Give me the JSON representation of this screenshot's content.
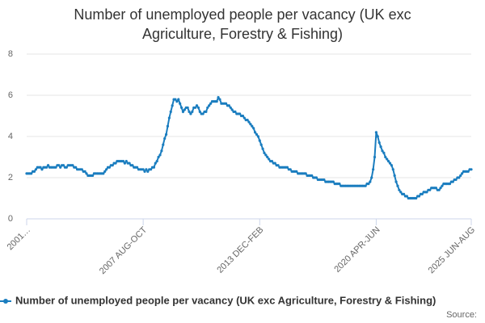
{
  "chart_data": {
    "type": "line",
    "title": "Number of unemployed people per vacancy (UK exc Agriculture, Forestry & Fishing)",
    "source": "Source:",
    "ylim": [
      0,
      8
    ],
    "yticks": [
      0,
      2,
      4,
      6,
      8
    ],
    "grid": true,
    "categories": [
      "2001…",
      null,
      null,
      null,
      null,
      null,
      null,
      null,
      null,
      null,
      null,
      null,
      null,
      null,
      null,
      null,
      null,
      null,
      null,
      null,
      null,
      null,
      null,
      null,
      null,
      null,
      null,
      null,
      null,
      null,
      null,
      null,
      null,
      null,
      null,
      null,
      null,
      null,
      null,
      null,
      null,
      null,
      null,
      null,
      null,
      null,
      null,
      null,
      null,
      null,
      null,
      null,
      null,
      null,
      null,
      null,
      null,
      null,
      null,
      null,
      null,
      null,
      null,
      null,
      null,
      null,
      null,
      null,
      null,
      null,
      null,
      null,
      null,
      null,
      null,
      null,
      "2007 AUG-OCT",
      null,
      null,
      null,
      null,
      null,
      null,
      null,
      null,
      null,
      null,
      null,
      null,
      null,
      null,
      null,
      null,
      null,
      null,
      null,
      null,
      null,
      null,
      null,
      null,
      null,
      null,
      null,
      null,
      null,
      null,
      null,
      null,
      null,
      null,
      null,
      null,
      null,
      null,
      null,
      null,
      null,
      null,
      null,
      null,
      null,
      null,
      null,
      null,
      null,
      null,
      null,
      null,
      null,
      null,
      null,
      null,
      null,
      null,
      null,
      null,
      null,
      null,
      null,
      null,
      null,
      null,
      null,
      null,
      null,
      null,
      null,
      null,
      null,
      null,
      null,
      "2013 DEC-FEB",
      null,
      null,
      null,
      null,
      null,
      null,
      null,
      null,
      null,
      null,
      null,
      null,
      null,
      null,
      null,
      null,
      null,
      null,
      null,
      null,
      null,
      null,
      null,
      null,
      null,
      null,
      null,
      null,
      null,
      null,
      null,
      null,
      null,
      null,
      null,
      null,
      null,
      null,
      null,
      null,
      null,
      null,
      null,
      null,
      null,
      null,
      null,
      null,
      null,
      null,
      null,
      null,
      null,
      null,
      null,
      null,
      null,
      null,
      null,
      null,
      null,
      null,
      null,
      null,
      null,
      null,
      null,
      null,
      null,
      null,
      null,
      null,
      null,
      null,
      null,
      "2020 APR-JUN",
      null,
      null,
      null,
      null,
      null,
      null,
      null,
      null,
      null,
      null,
      null,
      null,
      null,
      null,
      null,
      null,
      null,
      null,
      null,
      null,
      null,
      null,
      null,
      null,
      null,
      null,
      null,
      null,
      null,
      null,
      null,
      null,
      null,
      null,
      null,
      null,
      null,
      null,
      null,
      null,
      null,
      null,
      null,
      null,
      null,
      null,
      null,
      null,
      null,
      null,
      null,
      null,
      null,
      null,
      null,
      null,
      null,
      null,
      null,
      null,
      null,
      "2025 JUN-AUG"
    ],
    "series": [
      {
        "name": "Number of unemployed people per vacancy (UK exc Agriculture, Forestry & Fishing)",
        "color": "#1a7dbf",
        "values": [
          2.2,
          2.2,
          2.2,
          2.2,
          2.3,
          2.3,
          2.4,
          2.5,
          2.5,
          2.5,
          2.4,
          2.5,
          2.5,
          2.5,
          2.6,
          2.5,
          2.5,
          2.5,
          2.5,
          2.5,
          2.6,
          2.6,
          2.5,
          2.6,
          2.6,
          2.5,
          2.5,
          2.6,
          2.6,
          2.6,
          2.6,
          2.5,
          2.5,
          2.4,
          2.4,
          2.4,
          2.4,
          2.3,
          2.3,
          2.2,
          2.1,
          2.1,
          2.1,
          2.1,
          2.2,
          2.2,
          2.2,
          2.2,
          2.2,
          2.2,
          2.2,
          2.3,
          2.4,
          2.5,
          2.5,
          2.6,
          2.6,
          2.7,
          2.7,
          2.8,
          2.8,
          2.8,
          2.8,
          2.8,
          2.7,
          2.8,
          2.7,
          2.7,
          2.6,
          2.6,
          2.5,
          2.5,
          2.5,
          2.4,
          2.4,
          2.4,
          2.4,
          2.3,
          2.4,
          2.3,
          2.4,
          2.4,
          2.5,
          2.5,
          2.7,
          2.8,
          3.0,
          3.1,
          3.3,
          3.6,
          3.9,
          4.1,
          4.5,
          4.9,
          5.2,
          5.5,
          5.8,
          5.8,
          5.7,
          5.8,
          5.6,
          5.4,
          5.2,
          5.3,
          5.4,
          5.4,
          5.2,
          5.1,
          5.2,
          5.4,
          5.4,
          5.5,
          5.4,
          5.2,
          5.1,
          5.1,
          5.2,
          5.2,
          5.4,
          5.5,
          5.6,
          5.7,
          5.7,
          5.7,
          5.7,
          5.9,
          5.8,
          5.6,
          5.6,
          5.6,
          5.6,
          5.5,
          5.5,
          5.4,
          5.3,
          5.2,
          5.2,
          5.1,
          5.1,
          5.1,
          5.0,
          5.0,
          4.9,
          4.8,
          4.8,
          4.7,
          4.6,
          4.5,
          4.4,
          4.2,
          4.1,
          4.0,
          3.8,
          3.6,
          3.4,
          3.2,
          3.1,
          3.0,
          2.9,
          2.8,
          2.8,
          2.7,
          2.7,
          2.6,
          2.6,
          2.5,
          2.5,
          2.5,
          2.5,
          2.5,
          2.5,
          2.4,
          2.4,
          2.3,
          2.3,
          2.3,
          2.3,
          2.2,
          2.2,
          2.2,
          2.2,
          2.2,
          2.2,
          2.1,
          2.1,
          2.1,
          2.1,
          2.0,
          2.0,
          2.0,
          1.9,
          1.9,
          1.9,
          1.9,
          1.9,
          1.8,
          1.8,
          1.8,
          1.8,
          1.8,
          1.8,
          1.7,
          1.7,
          1.7,
          1.7,
          1.6,
          1.6,
          1.6,
          1.6,
          1.6,
          1.6,
          1.6,
          1.6,
          1.6,
          1.6,
          1.6,
          1.6,
          1.6,
          1.6,
          1.6,
          1.6,
          1.6,
          1.7,
          1.7,
          1.8,
          2.0,
          2.4,
          3.0,
          4.2,
          4.0,
          3.7,
          3.5,
          3.3,
          3.2,
          3.0,
          2.9,
          2.8,
          2.7,
          2.6,
          2.4,
          2.1,
          1.8,
          1.6,
          1.4,
          1.3,
          1.2,
          1.2,
          1.1,
          1.1,
          1.0,
          1.0,
          1.0,
          1.0,
          1.0,
          1.0,
          1.1,
          1.1,
          1.2,
          1.2,
          1.3,
          1.3,
          1.3,
          1.4,
          1.4,
          1.5,
          1.5,
          1.5,
          1.5,
          1.4,
          1.4,
          1.5,
          1.6,
          1.7,
          1.7,
          1.7,
          1.7,
          1.7,
          1.8,
          1.8,
          1.9,
          1.9,
          2.0,
          2.0,
          2.1,
          2.2,
          2.3,
          2.3,
          2.3,
          2.3,
          2.4,
          2.4
        ]
      }
    ]
  }
}
